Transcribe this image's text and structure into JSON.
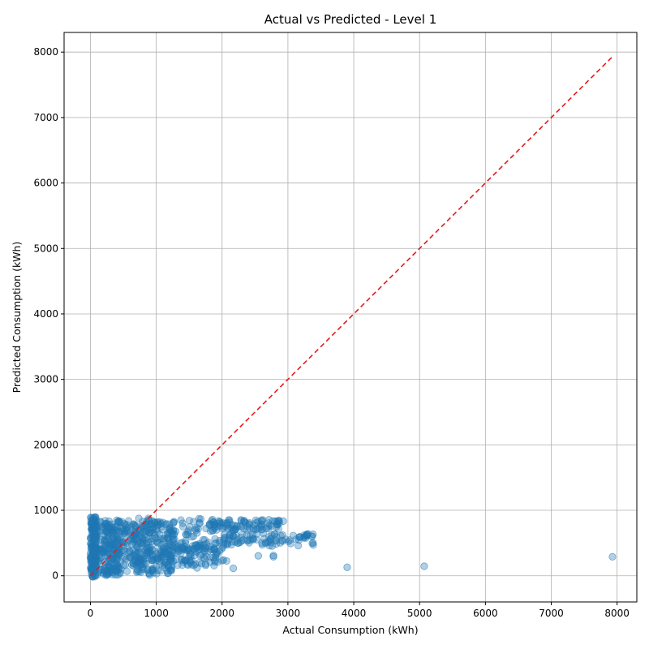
{
  "chart_data": {
    "type": "scatter",
    "title": "Actual vs Predicted - Level 1",
    "xlabel": "Actual Consumption (kWh)",
    "ylabel": "Predicted Consumption (kWh)",
    "xlim": [
      -400,
      8300
    ],
    "ylim": [
      -400,
      8300
    ],
    "xticks": [
      0,
      1000,
      2000,
      3000,
      4000,
      5000,
      6000,
      7000,
      8000
    ],
    "yticks": [
      0,
      1000,
      2000,
      3000,
      4000,
      5000,
      6000,
      7000,
      8000
    ],
    "grid": true,
    "colors": {
      "points": "#1f77b4",
      "reference_line": "#e41a1c",
      "grid": "#b0b0b0"
    },
    "reference_line": {
      "style": "dashed",
      "x": [
        0,
        7930
      ],
      "y": [
        0,
        7930
      ]
    },
    "clusters": [
      {
        "x_range": [
          0,
          100
        ],
        "y_range": [
          -20,
          900
        ],
        "count": 160
      },
      {
        "x_range": [
          0,
          450
        ],
        "y_range": [
          0,
          850
        ],
        "count": 140
      },
      {
        "x_range": [
          200,
          1300
        ],
        "y_range": [
          30,
          860
        ],
        "count": 320
      },
      {
        "x_range": [
          500,
          1900
        ],
        "y_range": [
          150,
          880
        ],
        "count": 180
      },
      {
        "x_range": [
          1800,
          2900
        ],
        "y_range": [
          700,
          860
        ],
        "count": 90
      },
      {
        "x_range": [
          2000,
          3400
        ],
        "y_range": [
          450,
          650
        ],
        "count": 90
      },
      {
        "x_range": [
          1300,
          2100
        ],
        "y_range": [
          200,
          550
        ],
        "count": 60
      }
    ],
    "outliers": [
      {
        "x": 7930,
        "y": 290
      },
      {
        "x": 5070,
        "y": 145
      },
      {
        "x": 3900,
        "y": 130
      },
      {
        "x": 2780,
        "y": 310
      },
      {
        "x": 2780,
        "y": 290
      },
      {
        "x": 2550,
        "y": 305
      },
      {
        "x": 2170,
        "y": 115
      },
      {
        "x": 1620,
        "y": 120
      },
      {
        "x": 1750,
        "y": 160
      },
      {
        "x": 3380,
        "y": 635
      },
      {
        "x": 3290,
        "y": 635
      },
      {
        "x": 2930,
        "y": 835
      },
      {
        "x": 2850,
        "y": 835
      },
      {
        "x": 330,
        "y": 740
      },
      {
        "x": 550,
        "y": 780
      },
      {
        "x": 900,
        "y": 10
      },
      {
        "x": 1230,
        "y": 80
      }
    ]
  }
}
